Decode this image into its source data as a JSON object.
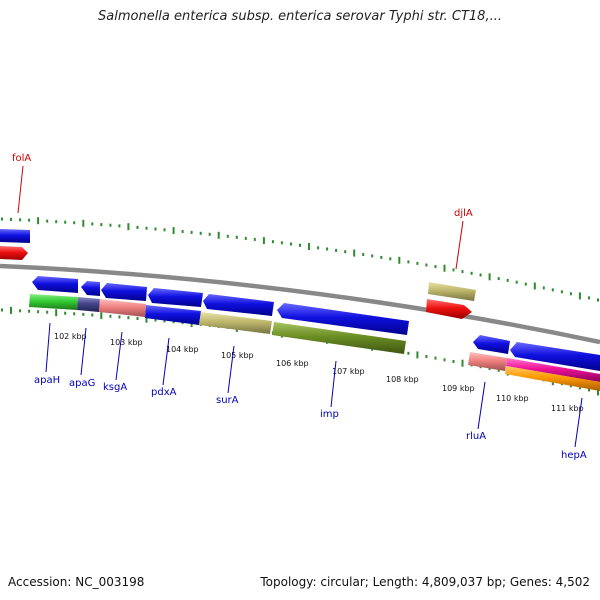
{
  "title": "Salmonella enterica subsp. enterica serovar Typhi str. CT18,...",
  "footer": {
    "accession": "Accession: NC_003198",
    "stats": "Topology: circular; Length: 4,809,037 bp; Genes: 4,502"
  },
  "colors": {
    "backbone": "#888888",
    "ticks": "#2e8b2e",
    "blue_gene": "#1010e0",
    "red_gene": "#ee1111",
    "green_gene": "#33cc33",
    "navy_gene": "#444488",
    "pink_gene": "#f08080",
    "khaki_gene": "#bdb76b",
    "olive_gene": "#6b8e23",
    "magenta_gene": "#ee1199",
    "orange_gene": "#ff9900",
    "label_blue": "#0000bb",
    "label_red": "#cc0000"
  },
  "kbp_labels": [
    "102 kbp",
    "103 kbp",
    "104 kbp",
    "105 kbp",
    "106 kbp",
    "107 kbp",
    "108 kbp",
    "109 kbp",
    "110 kbp",
    "111 kbp"
  ],
  "gene_labels": {
    "folA": "folA",
    "djlA": "djlA",
    "apaH": "apaH",
    "apaG": "apaG",
    "ksgA": "ksgA",
    "pdxA": "pdxA",
    "surA": "surA",
    "imp": "imp",
    "rluA": "rluA",
    "hepA": "hepA"
  }
}
